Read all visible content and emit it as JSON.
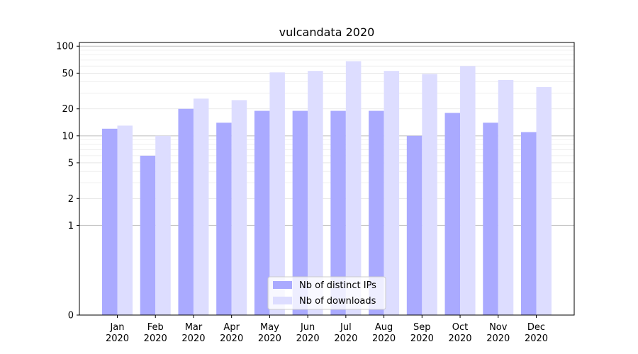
{
  "chart_data": {
    "type": "bar",
    "title": "vulcandata 2020",
    "xlabel": "",
    "ylabel": "",
    "y_scale": "symlog",
    "ylim": [
      0,
      110
    ],
    "y_ticks": [
      0,
      1,
      2,
      5,
      10,
      20,
      50,
      100
    ],
    "y_tick_labels": [
      "0",
      "1",
      "2",
      "5",
      "10",
      "20",
      "50",
      "100"
    ],
    "grid": true,
    "categories": [
      "Jan",
      "Feb",
      "Mar",
      "Apr",
      "May",
      "Jun",
      "Jul",
      "Aug",
      "Sep",
      "Oct",
      "Nov",
      "Dec"
    ],
    "category_year": "2020",
    "series": [
      {
        "name": "Nb of distinct IPs",
        "color": "#aaaaff",
        "values": [
          12,
          6,
          20,
          14,
          19,
          19,
          19,
          19,
          10,
          18,
          14,
          11
        ]
      },
      {
        "name": "Nb of downloads",
        "color": "#ddddff",
        "values": [
          13,
          10,
          26,
          25,
          51,
          53,
          68,
          53,
          49,
          60,
          42,
          35
        ]
      }
    ],
    "legend_position": "bottom-center"
  }
}
